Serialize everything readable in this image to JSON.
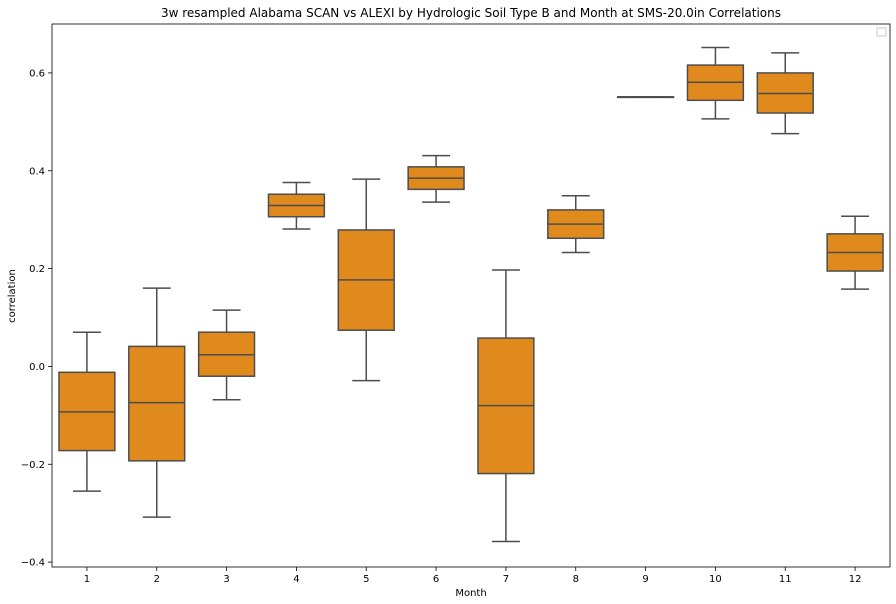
{
  "chart_data": {
    "type": "box",
    "title": "3w resampled Alabama SCAN vs ALEXI by Hydrologic Soil Type B and Month at SMS-20.0in Correlations",
    "xlabel": "Month",
    "ylabel": "correlation",
    "categories": [
      "1",
      "2",
      "3",
      "4",
      "5",
      "6",
      "7",
      "8",
      "9",
      "10",
      "11",
      "12"
    ],
    "yticks": [
      "−0.4",
      "−0.2",
      "0.0",
      "0.2",
      "0.4",
      "0.6"
    ],
    "ylim": [
      -0.41,
      0.7
    ],
    "legend": "top-right (empty)",
    "box_color": "#e08a1e",
    "line_color": "#4d4d4d",
    "boxes": [
      {
        "month": "1",
        "whisker_low": -0.255,
        "q1": -0.172,
        "median": -0.093,
        "q3": -0.012,
        "whisker_high": 0.07
      },
      {
        "month": "2",
        "whisker_low": -0.308,
        "q1": -0.193,
        "median": -0.074,
        "q3": 0.041,
        "whisker_high": 0.16
      },
      {
        "month": "3",
        "whisker_low": -0.068,
        "q1": -0.02,
        "median": 0.024,
        "q3": 0.07,
        "whisker_high": 0.115
      },
      {
        "month": "4",
        "whisker_low": 0.281,
        "q1": 0.306,
        "median": 0.329,
        "q3": 0.352,
        "whisker_high": 0.376
      },
      {
        "month": "5",
        "whisker_low": -0.029,
        "q1": 0.074,
        "median": 0.177,
        "q3": 0.279,
        "whisker_high": 0.383
      },
      {
        "month": "6",
        "whisker_low": 0.336,
        "q1": 0.362,
        "median": 0.385,
        "q3": 0.408,
        "whisker_high": 0.431
      },
      {
        "month": "7",
        "whisker_low": -0.358,
        "q1": -0.219,
        "median": -0.08,
        "q3": 0.058,
        "whisker_high": 0.197
      },
      {
        "month": "8",
        "whisker_low": 0.233,
        "q1": 0.262,
        "median": 0.291,
        "q3": 0.32,
        "whisker_high": 0.349
      },
      {
        "month": "9",
        "whisker_low": 0.551,
        "q1": 0.551,
        "median": 0.551,
        "q3": 0.551,
        "whisker_high": 0.551
      },
      {
        "month": "10",
        "whisker_low": 0.506,
        "q1": 0.544,
        "median": 0.581,
        "q3": 0.616,
        "whisker_high": 0.652
      },
      {
        "month": "11",
        "whisker_low": 0.476,
        "q1": 0.518,
        "median": 0.558,
        "q3": 0.6,
        "whisker_high": 0.641
      },
      {
        "month": "12",
        "whisker_low": 0.158,
        "q1": 0.195,
        "median": 0.233,
        "q3": 0.271,
        "whisker_high": 0.307
      }
    ]
  }
}
